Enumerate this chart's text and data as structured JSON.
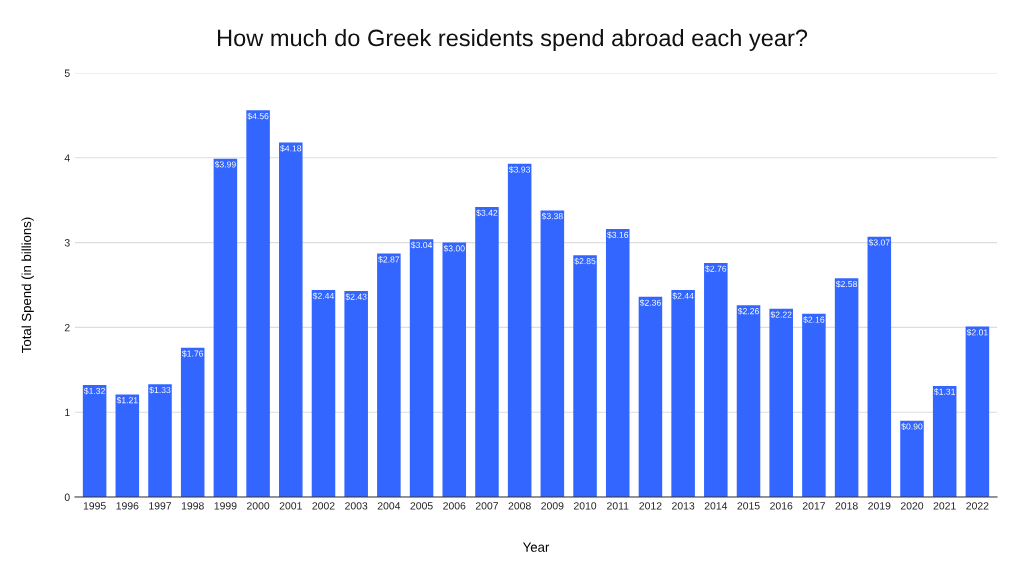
{
  "chart_data": {
    "type": "bar",
    "title": "How much do Greek residents spend abroad each year?",
    "xlabel": "Year",
    "ylabel": "Total Spend (in billions)",
    "categories": [
      "1995",
      "1996",
      "1997",
      "1998",
      "1999",
      "2000",
      "2001",
      "2002",
      "2003",
      "2004",
      "2005",
      "2006",
      "2007",
      "2008",
      "2009",
      "2010",
      "2011",
      "2012",
      "2013",
      "2014",
      "2015",
      "2016",
      "2017",
      "2018",
      "2019",
      "2020",
      "2021",
      "2022"
    ],
    "values": [
      1.32,
      1.21,
      1.33,
      1.76,
      3.99,
      4.56,
      4.18,
      2.44,
      2.43,
      2.87,
      3.04,
      3.0,
      3.42,
      3.93,
      3.38,
      2.85,
      3.16,
      2.36,
      2.44,
      2.76,
      2.26,
      2.22,
      2.16,
      2.58,
      3.07,
      0.9,
      1.31,
      2.01
    ],
    "value_labels": [
      "$1.32",
      "$1.21",
      "$1.33",
      "$1.76",
      "$3.99",
      "$4.56",
      "$4.18",
      "$2.44",
      "$2.43",
      "$2.87",
      "$3.04",
      "$3.00",
      "$3.42",
      "$3.93",
      "$3.38",
      "$2.85",
      "$3.16",
      "$2.36",
      "$2.44",
      "$2.76",
      "$2.26",
      "$2.22",
      "$2.16",
      "$2.58",
      "$3.07",
      "$0.90",
      "$1.31",
      "$2.01"
    ],
    "color": "#3366ff",
    "ylim": [
      0,
      5
    ],
    "yticks": [
      0,
      1,
      2,
      3,
      4,
      5
    ],
    "grid": "y"
  }
}
